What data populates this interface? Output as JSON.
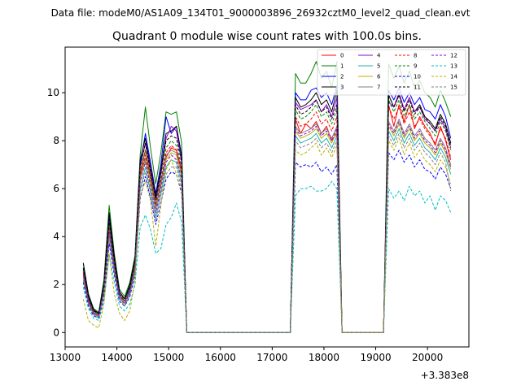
{
  "suptitle": "Data file: modeM0/AS1A09_134T01_9000003896_26932cztM0_level2_quad_clean.evt",
  "chart_data": {
    "type": "line",
    "title": "Quadrant 0 module wise count rates with 100.0s bins.",
    "xlabel": "",
    "ylabel": "",
    "x_offset_label": "+3.383e8",
    "xlim": [
      13000,
      20800
    ],
    "ylim": [
      -0.6,
      11.9
    ],
    "xticks": [
      13000,
      14000,
      15000,
      16000,
      17000,
      18000,
      19000,
      20000
    ],
    "yticks": [
      0,
      2,
      4,
      6,
      8,
      10
    ],
    "x": [
      13350,
      13450,
      13550,
      13650,
      13750,
      13850,
      13950,
      14050,
      14150,
      14250,
      14350,
      14450,
      14550,
      14650,
      14750,
      14850,
      14950,
      15050,
      15150,
      15250,
      15350,
      15450,
      15550,
      15650,
      15750,
      15850,
      15950,
      16050,
      16150,
      16250,
      16350,
      16450,
      16550,
      16650,
      16750,
      16850,
      16950,
      17050,
      17150,
      17250,
      17350,
      17450,
      17550,
      17650,
      17750,
      17850,
      17950,
      18050,
      18150,
      18250,
      18350,
      18450,
      18550,
      18650,
      18750,
      18850,
      18950,
      19050,
      19150,
      19250,
      19350,
      19450,
      19550,
      19650,
      19750,
      19850,
      19950,
      20050,
      20150,
      20250,
      20350,
      20450
    ],
    "legend_location": "upper right",
    "series": [
      {
        "name": "0",
        "color": "#ff0000",
        "style": "solid",
        "values": [
          2.6,
          1.4,
          0.9,
          0.75,
          1.9,
          4.5,
          2.9,
          1.6,
          1.3,
          1.8,
          2.9,
          6.6,
          7.6,
          6.6,
          5.2,
          6.3,
          7.3,
          7.7,
          7.6,
          6.8,
          0,
          0,
          0,
          0,
          0,
          0,
          0,
          0,
          0,
          0,
          0,
          0,
          0,
          0,
          0,
          0,
          0,
          0,
          0,
          0,
          0,
          8.9,
          8.3,
          8.7,
          8.5,
          8.8,
          8.3,
          8.6,
          8.0,
          8.3,
          0,
          0,
          0,
          0,
          0,
          0,
          0,
          0,
          0,
          9.5,
          8.6,
          9.5,
          8.8,
          9.5,
          8.5,
          9.0,
          8.6,
          8.3,
          7.8,
          8.6,
          8.0,
          7.2
        ]
      },
      {
        "name": "1",
        "color": "#008000",
        "style": "solid",
        "values": [
          2.9,
          1.6,
          1.0,
          0.85,
          2.2,
          5.3,
          3.3,
          1.8,
          1.5,
          2.1,
          3.2,
          7.4,
          9.4,
          7.7,
          6.2,
          7.5,
          9.2,
          9.1,
          9.2,
          7.9,
          0,
          0,
          0,
          0,
          0,
          0,
          0,
          0,
          0,
          0,
          0,
          0,
          0,
          0,
          0,
          0,
          0,
          0,
          0,
          0,
          0,
          10.8,
          10.4,
          10.4,
          10.8,
          11.3,
          10.6,
          10.9,
          10.2,
          11.3,
          0,
          0,
          0,
          0,
          0,
          0,
          0,
          0,
          0,
          11.2,
          10.6,
          11.1,
          10.4,
          10.9,
          10.2,
          10.5,
          10.0,
          9.8,
          9.4,
          10.1,
          9.6,
          9.0
        ]
      },
      {
        "name": "2",
        "color": "#0000ff",
        "style": "solid",
        "values": [
          2.7,
          1.5,
          0.95,
          0.8,
          2.0,
          4.8,
          3.1,
          1.7,
          1.4,
          1.9,
          3.0,
          7.0,
          8.3,
          7.1,
          5.8,
          7.0,
          9.0,
          8.3,
          8.6,
          7.4,
          0,
          0,
          0,
          0,
          0,
          0,
          0,
          0,
          0,
          0,
          0,
          0,
          0,
          0,
          0,
          0,
          0,
          0,
          0,
          0,
          0,
          10.0,
          9.7,
          9.7,
          10.1,
          10.2,
          9.8,
          10.0,
          9.5,
          10.3,
          0,
          0,
          0,
          0,
          0,
          0,
          0,
          0,
          0,
          10.1,
          9.7,
          10.2,
          9.6,
          10.0,
          9.5,
          9.8,
          9.3,
          9.2,
          8.9,
          9.5,
          9.0,
          8.1
        ]
      },
      {
        "name": "3",
        "color": "#000000",
        "style": "solid",
        "values": [
          2.9,
          1.6,
          0.95,
          0.8,
          2.1,
          5.0,
          3.2,
          1.7,
          1.4,
          2.0,
          3.1,
          7.2,
          8.1,
          6.9,
          5.7,
          6.8,
          8.3,
          8.4,
          8.6,
          7.3,
          0,
          0,
          0,
          0,
          0,
          0,
          0,
          0,
          0,
          0,
          0,
          0,
          0,
          0,
          0,
          0,
          0,
          0,
          0,
          0,
          0,
          9.8,
          9.4,
          9.5,
          9.7,
          10.0,
          9.5,
          9.7,
          9.2,
          10.1,
          0,
          0,
          0,
          0,
          0,
          0,
          0,
          0,
          0,
          9.9,
          9.4,
          9.9,
          9.3,
          9.8,
          9.2,
          9.5,
          9.0,
          8.8,
          8.5,
          9.1,
          8.7,
          7.9
        ]
      },
      {
        "name": "4",
        "color": "#9400d3",
        "style": "solid",
        "values": [
          2.6,
          1.4,
          0.85,
          0.7,
          1.9,
          4.6,
          2.9,
          1.6,
          1.3,
          1.8,
          2.9,
          6.9,
          7.9,
          6.8,
          5.5,
          6.6,
          8.1,
          8.6,
          8.4,
          7.1,
          0,
          0,
          0,
          0,
          0,
          0,
          0,
          0,
          0,
          0,
          0,
          0,
          0,
          0,
          0,
          0,
          0,
          0,
          0,
          0,
          0,
          9.6,
          9.3,
          9.4,
          9.5,
          9.7,
          9.2,
          9.5,
          9.0,
          9.8,
          0,
          0,
          0,
          0,
          0,
          0,
          0,
          0,
          0,
          9.6,
          9.4,
          10.0,
          9.3,
          9.8,
          9.2,
          9.4,
          8.9,
          8.7,
          8.4,
          8.9,
          8.5,
          7.7
        ]
      },
      {
        "name": "5",
        "color": "#20b2aa",
        "style": "solid",
        "values": [
          2.3,
          1.2,
          0.75,
          0.65,
          1.7,
          4.0,
          2.6,
          1.4,
          1.2,
          1.6,
          2.6,
          6.0,
          6.9,
          5.9,
          4.8,
          5.8,
          6.9,
          7.2,
          7.1,
          6.2,
          0,
          0,
          0,
          0,
          0,
          0,
          0,
          0,
          0,
          0,
          0,
          0,
          0,
          0,
          0,
          0,
          0,
          0,
          0,
          0,
          0,
          8.2,
          7.9,
          8.0,
          8.1,
          8.3,
          7.9,
          8.1,
          7.7,
          8.2,
          0,
          0,
          0,
          0,
          0,
          0,
          0,
          0,
          0,
          8.4,
          8.0,
          8.5,
          7.9,
          8.3,
          7.8,
          8.1,
          7.7,
          7.5,
          7.2,
          7.7,
          7.3,
          6.6
        ]
      },
      {
        "name": "6",
        "color": "#b8b000",
        "style": "solid",
        "values": [
          2.4,
          1.3,
          0.8,
          0.7,
          1.8,
          4.2,
          2.7,
          1.5,
          1.2,
          1.7,
          2.7,
          6.3,
          7.2,
          6.2,
          5.1,
          6.1,
          7.2,
          7.5,
          7.4,
          6.5,
          0,
          0,
          0,
          0,
          0,
          0,
          0,
          0,
          0,
          0,
          0,
          0,
          0,
          0,
          0,
          0,
          0,
          0,
          0,
          0,
          0,
          8.4,
          8.1,
          8.2,
          8.3,
          8.5,
          8.1,
          8.3,
          7.9,
          8.4,
          0,
          0,
          0,
          0,
          0,
          0,
          0,
          0,
          0,
          8.6,
          8.2,
          8.7,
          8.1,
          8.5,
          8.0,
          8.3,
          7.9,
          7.7,
          7.4,
          7.9,
          7.5,
          6.8
        ]
      },
      {
        "name": "7",
        "color": "#808080",
        "style": "solid",
        "values": [
          2.5,
          1.3,
          0.85,
          0.7,
          1.8,
          4.3,
          2.8,
          1.5,
          1.3,
          1.7,
          2.8,
          6.5,
          7.3,
          6.4,
          5.2,
          6.2,
          7.4,
          7.6,
          7.5,
          6.6,
          0,
          0,
          0,
          0,
          0,
          0,
          0,
          0,
          0,
          0,
          0,
          0,
          0,
          0,
          0,
          0,
          0,
          0,
          0,
          0,
          0,
          8.6,
          8.3,
          8.4,
          8.5,
          8.7,
          8.3,
          8.5,
          8.1,
          8.6,
          0,
          0,
          0,
          0,
          0,
          0,
          0,
          0,
          0,
          8.8,
          8.4,
          8.9,
          8.3,
          8.7,
          8.2,
          8.5,
          8.1,
          7.9,
          7.6,
          8.1,
          7.7,
          7.0
        ]
      },
      {
        "name": "8",
        "color": "#ff0000",
        "style": "dashed",
        "values": [
          2.5,
          1.3,
          0.8,
          0.7,
          1.8,
          4.4,
          2.8,
          1.5,
          1.3,
          1.7,
          2.8,
          6.5,
          7.4,
          6.4,
          5.3,
          6.3,
          7.5,
          7.8,
          7.6,
          6.7,
          0,
          0,
          0,
          0,
          0,
          0,
          0,
          0,
          0,
          0,
          0,
          0,
          0,
          0,
          0,
          0,
          0,
          0,
          0,
          0,
          0,
          9.0,
          8.6,
          8.7,
          8.9,
          9.2,
          8.7,
          8.9,
          8.4,
          9.0,
          0,
          0,
          0,
          0,
          0,
          0,
          0,
          0,
          0,
          9.4,
          8.9,
          9.4,
          8.7,
          9.2,
          8.6,
          8.9,
          8.5,
          8.2,
          7.9,
          8.5,
          8.1,
          7.3
        ]
      },
      {
        "name": "9",
        "color": "#008000",
        "style": "dashed",
        "values": [
          2.6,
          1.4,
          0.9,
          0.75,
          1.9,
          4.5,
          2.9,
          1.6,
          1.3,
          1.8,
          2.9,
          6.7,
          7.6,
          6.5,
          5.4,
          6.4,
          7.7,
          8.0,
          7.8,
          6.9,
          0,
          0,
          0,
          0,
          0,
          0,
          0,
          0,
          0,
          0,
          0,
          0,
          0,
          0,
          0,
          0,
          0,
          0,
          0,
          0,
          0,
          9.3,
          8.9,
          9.0,
          9.2,
          9.5,
          9.0,
          9.2,
          8.7,
          9.3,
          0,
          0,
          0,
          0,
          0,
          0,
          0,
          0,
          0,
          9.7,
          9.2,
          9.7,
          9.0,
          9.5,
          8.9,
          9.2,
          8.8,
          8.5,
          8.2,
          8.8,
          8.4,
          7.6
        ]
      },
      {
        "name": "10",
        "color": "#0000ff",
        "style": "dashed",
        "values": [
          2.1,
          1.1,
          0.7,
          0.6,
          1.5,
          3.7,
          2.4,
          1.3,
          1.1,
          1.5,
          2.4,
          5.6,
          6.5,
          5.6,
          4.5,
          5.4,
          6.4,
          6.7,
          6.6,
          5.8,
          0,
          0,
          0,
          0,
          0,
          0,
          0,
          0,
          0,
          0,
          0,
          0,
          0,
          0,
          0,
          0,
          0,
          0,
          0,
          0,
          0,
          7.1,
          6.9,
          7.0,
          6.9,
          7.1,
          6.7,
          6.9,
          6.6,
          7.0,
          0,
          0,
          0,
          0,
          0,
          0,
          0,
          0,
          0,
          7.5,
          7.2,
          7.6,
          7.1,
          7.4,
          6.9,
          7.2,
          6.8,
          6.7,
          6.4,
          6.9,
          6.6,
          6.0
        ]
      },
      {
        "name": "11",
        "color": "#000000",
        "style": "dashed",
        "values": [
          2.7,
          1.5,
          0.9,
          0.8,
          2.0,
          4.7,
          3.0,
          1.6,
          1.4,
          1.9,
          3.0,
          6.9,
          7.9,
          6.7,
          5.6,
          6.7,
          8.0,
          8.2,
          8.1,
          7.1,
          0,
          0,
          0,
          0,
          0,
          0,
          0,
          0,
          0,
          0,
          0,
          0,
          0,
          0,
          0,
          0,
          0,
          0,
          0,
          0,
          0,
          9.5,
          9.1,
          9.2,
          9.4,
          9.7,
          9.2,
          9.4,
          8.9,
          9.5,
          0,
          0,
          0,
          0,
          0,
          0,
          0,
          0,
          0,
          9.9,
          9.4,
          9.9,
          9.2,
          9.7,
          9.1,
          9.4,
          9.0,
          8.7,
          8.4,
          9.0,
          8.6,
          7.8
        ]
      },
      {
        "name": "12",
        "color": "#9400d3",
        "style": "dashed",
        "values": [
          2.4,
          1.3,
          0.8,
          0.7,
          1.7,
          4.2,
          2.7,
          1.5,
          1.2,
          1.7,
          2.7,
          6.3,
          7.1,
          6.1,
          5.0,
          6.0,
          7.1,
          7.4,
          7.2,
          6.4,
          0,
          0,
          0,
          0,
          0,
          0,
          0,
          0,
          0,
          0,
          0,
          0,
          0,
          0,
          0,
          0,
          0,
          0,
          0,
          0,
          0,
          8.5,
          8.2,
          8.3,
          8.4,
          8.6,
          8.2,
          8.4,
          8.0,
          8.5,
          0,
          0,
          0,
          0,
          0,
          0,
          0,
          0,
          0,
          8.7,
          8.3,
          8.8,
          8.2,
          8.6,
          8.1,
          8.4,
          8.0,
          7.8,
          7.5,
          8.0,
          7.6,
          6.9
        ]
      },
      {
        "name": "13",
        "color": "#00bfc8",
        "style": "dashed",
        "values": [
          1.9,
          1.0,
          0.6,
          0.5,
          1.3,
          3.2,
          2.1,
          1.1,
          0.9,
          1.2,
          2.0,
          4.4,
          4.9,
          4.3,
          3.3,
          3.5,
          4.5,
          4.8,
          5.4,
          4.6,
          0,
          0,
          0,
          0,
          0,
          0,
          0,
          0,
          0,
          0,
          0,
          0,
          0,
          0,
          0,
          0,
          0,
          0,
          0,
          0,
          0,
          5.7,
          6.0,
          6.0,
          6.1,
          5.9,
          5.9,
          6.0,
          6.3,
          6.0,
          0,
          0,
          0,
          0,
          0,
          0,
          0,
          0,
          0,
          6.0,
          5.6,
          5.9,
          5.5,
          6.1,
          5.7,
          5.9,
          5.4,
          5.7,
          5.1,
          5.7,
          5.5,
          5.0
        ]
      },
      {
        "name": "14",
        "color": "#b8b000",
        "style": "dashed",
        "values": [
          1.4,
          0.5,
          0.3,
          0.2,
          1.2,
          3.3,
          1.6,
          0.8,
          0.5,
          0.9,
          2.2,
          5.7,
          6.3,
          5.5,
          3.6,
          5.3,
          6.8,
          7.2,
          6.6,
          5.9,
          0,
          0,
          0,
          0,
          0,
          0,
          0,
          0,
          0,
          0,
          0,
          0,
          0,
          0,
          0,
          0,
          0,
          0,
          0,
          0,
          0,
          7.6,
          7.4,
          7.5,
          7.7,
          7.9,
          7.4,
          7.7,
          7.3,
          7.8,
          0,
          0,
          0,
          0,
          0,
          0,
          0,
          0,
          0,
          8.0,
          7.6,
          8.1,
          7.4,
          7.9,
          7.3,
          7.6,
          7.2,
          7.0,
          6.7,
          7.2,
          6.9,
          6.2
        ]
      },
      {
        "name": "15",
        "color": "#808080",
        "style": "dashed",
        "values": [
          2.2,
          1.2,
          0.75,
          0.6,
          1.6,
          3.9,
          2.5,
          1.4,
          1.1,
          1.6,
          2.5,
          5.9,
          6.7,
          5.8,
          4.7,
          5.7,
          6.6,
          6.9,
          6.9,
          6.0,
          0,
          0,
          0,
          0,
          0,
          0,
          0,
          0,
          0,
          0,
          0,
          0,
          0,
          0,
          0,
          0,
          0,
          0,
          0,
          0,
          0,
          8.0,
          7.7,
          7.8,
          7.9,
          8.1,
          7.7,
          7.9,
          7.5,
          8.0,
          0,
          0,
          0,
          0,
          0,
          0,
          0,
          0,
          0,
          8.2,
          7.8,
          8.3,
          7.7,
          8.1,
          7.6,
          7.9,
          7.5,
          7.3,
          7.0,
          7.5,
          7.1,
          5.9
        ]
      }
    ]
  }
}
